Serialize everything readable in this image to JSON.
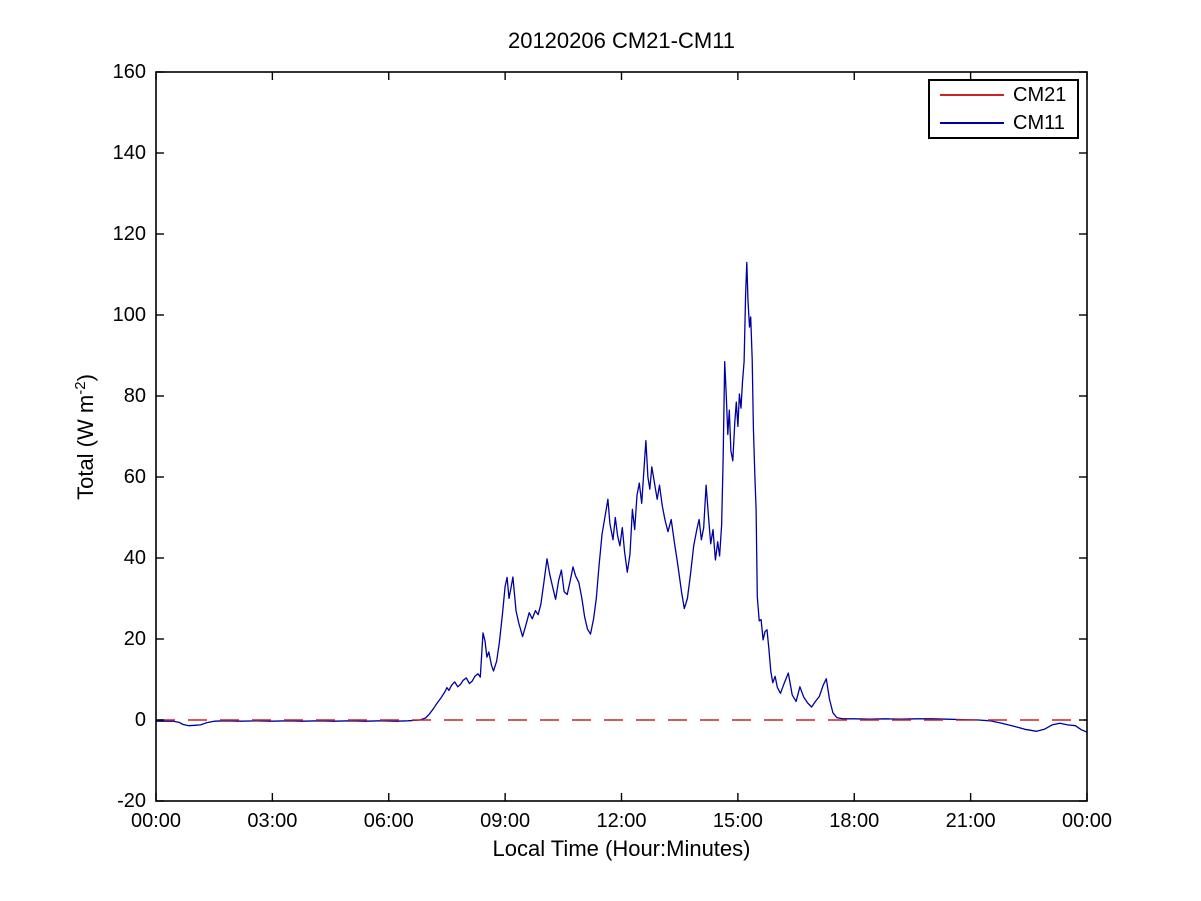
{
  "title": "20120206 CM21-CM11",
  "axes": {
    "xlabel": "Local Time (Hour:Minutes)",
    "ylabel_prefix": "Total (W m",
    "ylabel_sup": "-2",
    "ylabel_suffix": ")",
    "x_ticks": [
      {
        "t": 0,
        "label": "00:00"
      },
      {
        "t": 3,
        "label": "03:00"
      },
      {
        "t": 6,
        "label": "06:00"
      },
      {
        "t": 9,
        "label": "09:00"
      },
      {
        "t": 12,
        "label": "12:00"
      },
      {
        "t": 15,
        "label": "15:00"
      },
      {
        "t": 18,
        "label": "18:00"
      },
      {
        "t": 21,
        "label": "21:00"
      },
      {
        "t": 24,
        "label": "00:00"
      }
    ],
    "y_ticks": [
      {
        "v": -20,
        "label": "-20"
      },
      {
        "v": 0,
        "label": "0"
      },
      {
        "v": 20,
        "label": "20"
      },
      {
        "v": 40,
        "label": "40"
      },
      {
        "v": 60,
        "label": "60"
      },
      {
        "v": 80,
        "label": "80"
      },
      {
        "v": 100,
        "label": "100"
      },
      {
        "v": 120,
        "label": "120"
      },
      {
        "v": 140,
        "label": "140"
      },
      {
        "v": 160,
        "label": "160"
      }
    ]
  },
  "legend": {
    "items": [
      {
        "label": "CM21",
        "color": "#cc2222"
      },
      {
        "label": "CM11",
        "color": "#0000a0"
      }
    ]
  },
  "colors": {
    "cm21_red": "#cc2222",
    "cm11_blue": "#0000a0",
    "axis_black": "#000000",
    "background": "#ffffff"
  },
  "chart_data": {
    "type": "line",
    "title": "20120206 CM21-CM11",
    "xlabel": "Local Time (Hour:Minutes)",
    "ylabel": "Total (W m^-2)",
    "xlim_hours": [
      0,
      24
    ],
    "ylim": [
      -20,
      160
    ],
    "x_tick_labels": [
      "00:00",
      "03:00",
      "06:00",
      "09:00",
      "12:00",
      "15:00",
      "18:00",
      "21:00",
      "00:00"
    ],
    "grid": false,
    "legend_position": "top-right",
    "series": [
      {
        "name": "CM21",
        "color": "#cc2222",
        "line_style": "dashed",
        "description": "flat reference at 0 W m-2 across full day",
        "points": [
          [
            0,
            0
          ],
          [
            24,
            0
          ]
        ]
      },
      {
        "name": "CM11",
        "color": "#0000a0",
        "line_style": "solid",
        "peak_value": 113,
        "peak_time_hours": 15.23,
        "points": [
          [
            0.0,
            -0.3
          ],
          [
            0.25,
            -0.3
          ],
          [
            0.45,
            -0.3
          ],
          [
            0.6,
            -0.6
          ],
          [
            0.7,
            -1.1
          ],
          [
            0.85,
            -1.4
          ],
          [
            1.0,
            -1.3
          ],
          [
            1.15,
            -1.2
          ],
          [
            1.3,
            -0.7
          ],
          [
            1.5,
            -0.3
          ],
          [
            1.8,
            -0.2
          ],
          [
            2.2,
            -0.3
          ],
          [
            2.6,
            -0.2
          ],
          [
            3.0,
            -0.3
          ],
          [
            3.4,
            -0.2
          ],
          [
            3.8,
            -0.3
          ],
          [
            4.2,
            -0.2
          ],
          [
            4.6,
            -0.3
          ],
          [
            5.0,
            -0.2
          ],
          [
            5.4,
            -0.3
          ],
          [
            5.8,
            -0.2
          ],
          [
            6.2,
            -0.3
          ],
          [
            6.5,
            -0.2
          ],
          [
            6.8,
            0.0
          ],
          [
            6.95,
            0.5
          ],
          [
            7.05,
            1.5
          ],
          [
            7.15,
            2.8
          ],
          [
            7.25,
            4.2
          ],
          [
            7.35,
            5.5
          ],
          [
            7.45,
            7.0
          ],
          [
            7.5,
            8.0
          ],
          [
            7.55,
            7.3
          ],
          [
            7.62,
            8.6
          ],
          [
            7.7,
            9.4
          ],
          [
            7.78,
            8.2
          ],
          [
            7.85,
            8.8
          ],
          [
            7.92,
            9.8
          ],
          [
            8.0,
            10.4
          ],
          [
            8.08,
            9.0
          ],
          [
            8.15,
            9.6
          ],
          [
            8.22,
            10.8
          ],
          [
            8.3,
            11.4
          ],
          [
            8.36,
            10.6
          ],
          [
            8.43,
            21.5
          ],
          [
            8.48,
            19.5
          ],
          [
            8.53,
            15.5
          ],
          [
            8.58,
            16.8
          ],
          [
            8.65,
            13.5
          ],
          [
            8.7,
            12.1
          ],
          [
            8.78,
            14.5
          ],
          [
            8.85,
            19.0
          ],
          [
            8.93,
            26.0
          ],
          [
            9.0,
            33.0
          ],
          [
            9.05,
            35.2
          ],
          [
            9.1,
            30.0
          ],
          [
            9.15,
            32.5
          ],
          [
            9.2,
            35.3
          ],
          [
            9.28,
            27.0
          ],
          [
            9.35,
            24.0
          ],
          [
            9.45,
            20.6
          ],
          [
            9.55,
            24.0
          ],
          [
            9.62,
            26.5
          ],
          [
            9.7,
            25.0
          ],
          [
            9.78,
            27.0
          ],
          [
            9.85,
            26.0
          ],
          [
            9.92,
            28.5
          ],
          [
            10.0,
            34.0
          ],
          [
            10.08,
            39.8
          ],
          [
            10.15,
            36.0
          ],
          [
            10.22,
            33.0
          ],
          [
            10.3,
            29.8
          ],
          [
            10.38,
            34.5
          ],
          [
            10.45,
            37.0
          ],
          [
            10.52,
            31.7
          ],
          [
            10.6,
            31.0
          ],
          [
            10.68,
            34.5
          ],
          [
            10.75,
            37.8
          ],
          [
            10.82,
            35.5
          ],
          [
            10.9,
            34.0
          ],
          [
            10.98,
            30.0
          ],
          [
            11.05,
            25.5
          ],
          [
            11.12,
            22.5
          ],
          [
            11.2,
            21.2
          ],
          [
            11.28,
            25.0
          ],
          [
            11.35,
            30.0
          ],
          [
            11.42,
            38.0
          ],
          [
            11.5,
            46.0
          ],
          [
            11.58,
            50.5
          ],
          [
            11.65,
            54.5
          ],
          [
            11.7,
            48.5
          ],
          [
            11.78,
            44.5
          ],
          [
            11.84,
            50.0
          ],
          [
            11.9,
            45.5
          ],
          [
            11.96,
            43.0
          ],
          [
            12.02,
            47.5
          ],
          [
            12.08,
            41.5
          ],
          [
            12.15,
            36.5
          ],
          [
            12.22,
            41.0
          ],
          [
            12.28,
            52.0
          ],
          [
            12.34,
            47.0
          ],
          [
            12.4,
            55.5
          ],
          [
            12.46,
            58.5
          ],
          [
            12.52,
            53.5
          ],
          [
            12.58,
            62.0
          ],
          [
            12.63,
            69.0
          ],
          [
            12.68,
            60.0
          ],
          [
            12.73,
            57.0
          ],
          [
            12.78,
            62.5
          ],
          [
            12.85,
            58.5
          ],
          [
            12.92,
            54.5
          ],
          [
            12.98,
            58.0
          ],
          [
            13.05,
            53.0
          ],
          [
            13.12,
            49.5
          ],
          [
            13.2,
            46.5
          ],
          [
            13.28,
            49.5
          ],
          [
            13.36,
            44.0
          ],
          [
            13.45,
            38.5
          ],
          [
            13.55,
            31.5
          ],
          [
            13.62,
            27.5
          ],
          [
            13.7,
            30.0
          ],
          [
            13.78,
            36.0
          ],
          [
            13.86,
            43.0
          ],
          [
            13.94,
            47.0
          ],
          [
            14.0,
            49.5
          ],
          [
            14.06,
            44.5
          ],
          [
            14.12,
            47.5
          ],
          [
            14.18,
            58.0
          ],
          [
            14.24,
            50.5
          ],
          [
            14.3,
            43.5
          ],
          [
            14.36,
            47.0
          ],
          [
            14.42,
            39.5
          ],
          [
            14.48,
            44.0
          ],
          [
            14.53,
            40.5
          ],
          [
            14.58,
            48.0
          ],
          [
            14.62,
            64.0
          ],
          [
            14.66,
            88.5
          ],
          [
            14.7,
            80.5
          ],
          [
            14.74,
            70.5
          ],
          [
            14.78,
            76.5
          ],
          [
            14.82,
            66.5
          ],
          [
            14.87,
            64.0
          ],
          [
            14.92,
            73.5
          ],
          [
            14.96,
            78.5
          ],
          [
            15.0,
            72.5
          ],
          [
            15.04,
            80.5
          ],
          [
            15.08,
            77.0
          ],
          [
            15.12,
            83.5
          ],
          [
            15.16,
            88.5
          ],
          [
            15.2,
            105.0
          ],
          [
            15.23,
            113.0
          ],
          [
            15.26,
            103.5
          ],
          [
            15.3,
            97.0
          ],
          [
            15.33,
            99.5
          ],
          [
            15.37,
            89.0
          ],
          [
            15.4,
            72.0
          ],
          [
            15.44,
            60.0
          ],
          [
            15.47,
            52.0
          ],
          [
            15.5,
            30.5
          ],
          [
            15.55,
            24.5
          ],
          [
            15.6,
            24.8
          ],
          [
            15.65,
            19.8
          ],
          [
            15.7,
            21.8
          ],
          [
            15.75,
            22.3
          ],
          [
            15.8,
            17.5
          ],
          [
            15.85,
            12.0
          ],
          [
            15.9,
            9.2
          ],
          [
            15.96,
            10.8
          ],
          [
            16.02,
            8.0
          ],
          [
            16.1,
            6.6
          ],
          [
            16.2,
            9.2
          ],
          [
            16.3,
            11.6
          ],
          [
            16.4,
            6.2
          ],
          [
            16.5,
            4.6
          ],
          [
            16.6,
            8.2
          ],
          [
            16.7,
            5.6
          ],
          [
            16.8,
            4.2
          ],
          [
            16.9,
            3.2
          ],
          [
            17.0,
            4.6
          ],
          [
            17.1,
            5.8
          ],
          [
            17.2,
            8.6
          ],
          [
            17.28,
            10.2
          ],
          [
            17.36,
            5.2
          ],
          [
            17.45,
            1.8
          ],
          [
            17.55,
            0.6
          ],
          [
            17.7,
            0.3
          ],
          [
            18.0,
            0.3
          ],
          [
            18.4,
            0.2
          ],
          [
            18.8,
            0.3
          ],
          [
            19.2,
            0.2
          ],
          [
            19.6,
            0.3
          ],
          [
            20.0,
            0.3
          ],
          [
            20.4,
            0.2
          ],
          [
            20.8,
            0.1
          ],
          [
            21.2,
            0.0
          ],
          [
            21.5,
            -0.2
          ],
          [
            21.8,
            -0.8
          ],
          [
            22.1,
            -1.5
          ],
          [
            22.4,
            -2.3
          ],
          [
            22.7,
            -2.8
          ],
          [
            22.9,
            -2.3
          ],
          [
            23.1,
            -1.2
          ],
          [
            23.3,
            -0.8
          ],
          [
            23.5,
            -1.2
          ],
          [
            23.7,
            -1.4
          ],
          [
            23.85,
            -2.4
          ],
          [
            24.0,
            -3.0
          ]
        ]
      }
    ]
  }
}
